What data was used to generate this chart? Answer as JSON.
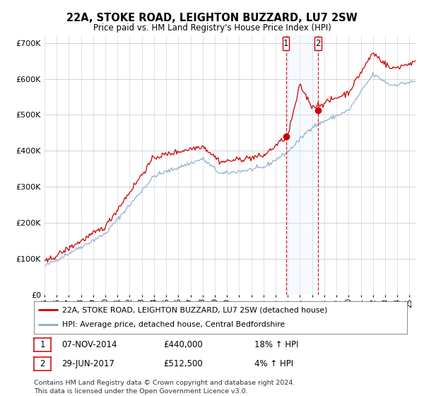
{
  "title": "22A, STOKE ROAD, LEIGHTON BUZZARD, LU7 2SW",
  "subtitle": "Price paid vs. HM Land Registry's House Price Index (HPI)",
  "ylim": [
    0,
    720000
  ],
  "yticks": [
    0,
    100000,
    200000,
    300000,
    400000,
    500000,
    600000,
    700000
  ],
  "ytick_labels": [
    "£0",
    "£100K",
    "£200K",
    "£300K",
    "£400K",
    "£500K",
    "£600K",
    "£700K"
  ],
  "xlim_start": 1995,
  "xlim_end": 2025.5,
  "background_color": "#ffffff",
  "plot_bg_color": "#ffffff",
  "grid_color": "#cccccc",
  "sale1_x": 2014.85,
  "sale1_y": 440000,
  "sale2_x": 2017.49,
  "sale2_y": 512500,
  "sale1_date": "07-NOV-2014",
  "sale1_price": "£440,000",
  "sale1_hpi": "18% ↑ HPI",
  "sale2_date": "29-JUN-2017",
  "sale2_price": "£512,500",
  "sale2_hpi": "4% ↑ HPI",
  "legend_line1": "22A, STOKE ROAD, LEIGHTON BUZZARD, LU7 2SW (detached house)",
  "legend_line2": "HPI: Average price, detached house, Central Bedfordshire",
  "footer": "Contains HM Land Registry data © Crown copyright and database right 2024.\nThis data is licensed under the Open Government Licence v3.0.",
  "red_color": "#cc0000",
  "blue_color": "#88aacc",
  "shade_color": "#ddeeff",
  "marker_color": "#cc0000"
}
